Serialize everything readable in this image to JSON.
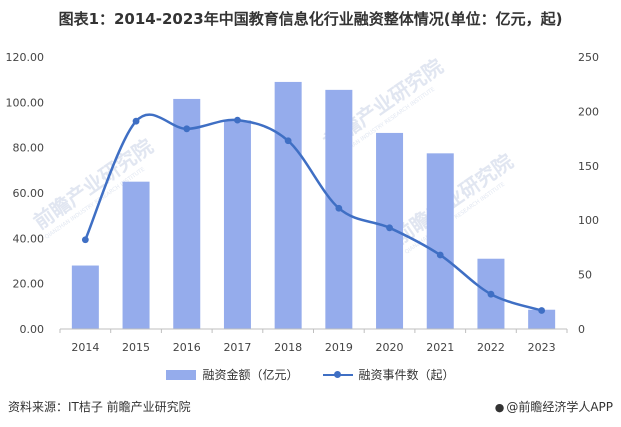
{
  "colors": {
    "bar": "#95acec",
    "line": "#3f6fc4",
    "watermark": "#c9d3e6"
  },
  "header": {
    "title": "图表1：2014-2023年中国教育信息化行业融资整体情况(单位：亿元，起)"
  },
  "chart_data": {
    "type": "bar",
    "title": "图表1：2014-2023年中国教育信息化行业融资整体情况(单位：亿元，起)",
    "categories": [
      "2014",
      "2015",
      "2016",
      "2017",
      "2018",
      "2019",
      "2020",
      "2021",
      "2022",
      "2023"
    ],
    "series": [
      {
        "name": "融资金额（亿元）",
        "type": "bar",
        "axis": "left",
        "values": [
          28,
          65,
          101.5,
          92,
          109,
          105.5,
          86.5,
          77.5,
          31,
          8.5
        ]
      },
      {
        "name": "融资事件数（起）",
        "type": "line",
        "axis": "right",
        "smooth": true,
        "values": [
          82,
          191,
          184,
          192,
          173,
          111,
          93,
          68,
          32,
          17
        ]
      }
    ],
    "y_left": {
      "min": 0,
      "max": 120,
      "ticks": [
        "0.00",
        "20.00",
        "40.00",
        "60.00",
        "80.00",
        "100.00",
        "120.00"
      ]
    },
    "y_right": {
      "min": 0,
      "max": 250,
      "ticks": [
        "0",
        "50",
        "100",
        "150",
        "200",
        "250"
      ]
    },
    "grid": false,
    "legend_position": "bottom"
  },
  "legend": {
    "bar_label": "融资金额（亿元）",
    "line_label": "融资事件数（起）"
  },
  "footer": {
    "source": "资料来源：IT桔子 前瞻产业研究院",
    "brand_icon": "●",
    "brand": "@前瞻经济学人APP"
  },
  "watermarks": [
    {
      "main": "前瞻产业研究院",
      "sub": "QIANZHAN INDUSTRY RESEARCH INSTITUTE"
    },
    {
      "main": "前瞻产业研究院",
      "sub": "QIANZHAN INDUSTRY RESEARCH INSTITUTE"
    },
    {
      "main": "前瞻产业研究院",
      "sub": "QIANZHAN INDUSTRY RESEARCH INSTITUTE"
    }
  ]
}
